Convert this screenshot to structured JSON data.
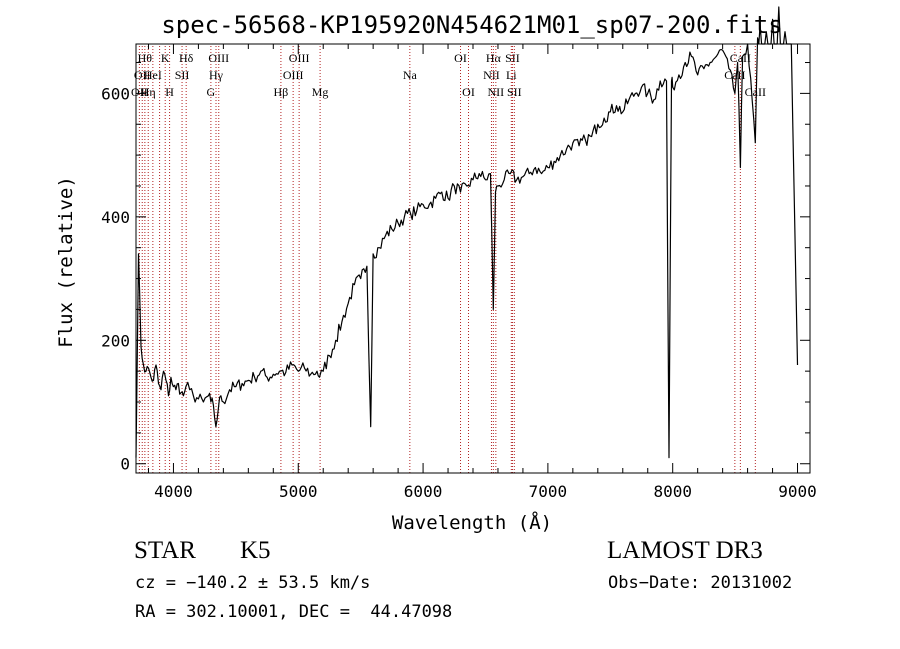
{
  "chart_data": {
    "type": "line",
    "title": "spec-56568-KP195920N454621M01_sp07-200.fits",
    "xlabel": "Wavelength (Å)",
    "ylabel": "Flux (relative)",
    "xlim": [
      3700,
      9100
    ],
    "ylim": [
      -15,
      680
    ],
    "xticks": [
      4000,
      5000,
      6000,
      7000,
      8000,
      9000
    ],
    "xtick_labels": [
      "4000",
      "5000",
      "6000",
      "7000",
      "8000",
      "9000"
    ],
    "yticks": [
      0,
      200,
      400,
      600
    ],
    "ytick_labels": [
      "0",
      "200",
      "400",
      "600"
    ],
    "grid": false,
    "line_color": "#000000",
    "marker_color": "#b22222",
    "series": [
      {
        "name": "flux",
        "x": [
          3700,
          3720,
          3740,
          3760,
          3780,
          3800,
          3820,
          3840,
          3860,
          3880,
          3900,
          3920,
          3940,
          3960,
          3980,
          4000,
          4020,
          4040,
          4060,
          4080,
          4100,
          4130,
          4160,
          4200,
          4240,
          4280,
          4300,
          4320,
          4340,
          4360,
          4380,
          4400,
          4450,
          4500,
          4550,
          4600,
          4650,
          4700,
          4750,
          4800,
          4850,
          4900,
          4950,
          5000,
          5050,
          5100,
          5150,
          5170,
          5200,
          5250,
          5300,
          5350,
          5400,
          5450,
          5500,
          5550,
          5580,
          5600,
          5650,
          5700,
          5750,
          5800,
          5850,
          5900,
          5950,
          6000,
          6050,
          6100,
          6150,
          6200,
          6250,
          6300,
          6350,
          6400,
          6450,
          6500,
          6540,
          6563,
          6580,
          6600,
          6650,
          6700,
          6750,
          6800,
          6850,
          6900,
          6950,
          7000,
          7050,
          7100,
          7150,
          7200,
          7250,
          7300,
          7350,
          7400,
          7450,
          7500,
          7550,
          7600,
          7650,
          7700,
          7750,
          7800,
          7850,
          7900,
          7950,
          7970,
          7990,
          8000,
          8050,
          8100,
          8150,
          8200,
          8250,
          8300,
          8350,
          8400,
          8450,
          8498,
          8520,
          8542,
          8560,
          8600,
          8662,
          8680,
          8700,
          8750,
          8800,
          8850,
          8900,
          8950,
          9000
        ],
        "y": [
          10,
          340,
          190,
          160,
          150,
          155,
          140,
          135,
          160,
          130,
          120,
          150,
          135,
          110,
          140,
          125,
          120,
          130,
          115,
          110,
          125,
          120,
          110,
          105,
          100,
          110,
          100,
          95,
          60,
          90,
          110,
          100,
          120,
          125,
          130,
          135,
          140,
          150,
          140,
          145,
          150,
          148,
          160,
          150,
          155,
          145,
          150,
          140,
          150,
          175,
          200,
          230,
          260,
          290,
          300,
          320,
          60,
          340,
          350,
          370,
          380,
          390,
          400,
          405,
          410,
          420,
          420,
          430,
          440,
          430,
          450,
          440,
          450,
          460,
          470,
          460,
          470,
          250,
          440,
          450,
          460,
          470,
          460,
          465,
          470,
          480,
          470,
          480,
          490,
          500,
          510,
          520,
          515,
          525,
          530,
          550,
          560,
          570,
          580,
          570,
          590,
          600,
          610,
          600,
          590,
          620,
          620,
          10,
          620,
          610,
          630,
          650,
          660,
          630,
          640,
          650,
          660,
          670,
          640,
          600,
          650,
          480,
          660,
          680,
          520,
          690,
          710,
          700,
          720,
          740,
          700,
          680,
          160
        ]
      }
    ],
    "line_markers": [
      {
        "x": 3727,
        "label": "OII",
        "row": 2
      },
      {
        "x": 3750,
        "label": "OII",
        "row": 1
      },
      {
        "x": 3771,
        "label": "Hθ",
        "row": 0
      },
      {
        "x": 3798,
        "label": "Hη",
        "row": 2
      },
      {
        "x": 3835,
        "label": "HeI",
        "row": 1
      },
      {
        "x": 3889,
        "label": "",
        "row": 0
      },
      {
        "x": 3934,
        "label": "K",
        "row": 0
      },
      {
        "x": 3969,
        "label": "H",
        "row": 2
      },
      {
        "x": 4069,
        "label": "SII",
        "row": 1
      },
      {
        "x": 4102,
        "label": "Hδ",
        "row": 0
      },
      {
        "x": 4300,
        "label": "G",
        "row": 2
      },
      {
        "x": 4341,
        "label": "Hγ",
        "row": 1
      },
      {
        "x": 4363,
        "label": "OIII",
        "row": 0
      },
      {
        "x": 4861,
        "label": "Hβ",
        "row": 2
      },
      {
        "x": 4959,
        "label": "OIII",
        "row": 1
      },
      {
        "x": 5007,
        "label": "OIII",
        "row": 0
      },
      {
        "x": 5175,
        "label": "Mg",
        "row": 2
      },
      {
        "x": 5894,
        "label": "Na",
        "row": 1
      },
      {
        "x": 6300,
        "label": "OI",
        "row": 0
      },
      {
        "x": 6364,
        "label": "OI",
        "row": 2
      },
      {
        "x": 6548,
        "label": "NII",
        "row": 1
      },
      {
        "x": 6563,
        "label": "Hα",
        "row": 0
      },
      {
        "x": 6583,
        "label": "NII",
        "row": 2
      },
      {
        "x": 6707,
        "label": "Li",
        "row": 1
      },
      {
        "x": 6716,
        "label": "SII",
        "row": 0
      },
      {
        "x": 6731,
        "label": "SII",
        "row": 2
      },
      {
        "x": 8498,
        "label": "CaII",
        "row": 1
      },
      {
        "x": 8542,
        "label": "CaII",
        "row": 0
      },
      {
        "x": 8662,
        "label": "CaII",
        "row": 2
      }
    ]
  },
  "info": {
    "object_class": "STAR",
    "subclass": "K5",
    "survey": "LAMOST DR3",
    "redshift_line": "cz = −140.2 ± 53.5 km/s",
    "obs_date_line": "Obs−Date: 20131002",
    "coords_line": "RA = 302.10001, DEC =  44.47098"
  }
}
